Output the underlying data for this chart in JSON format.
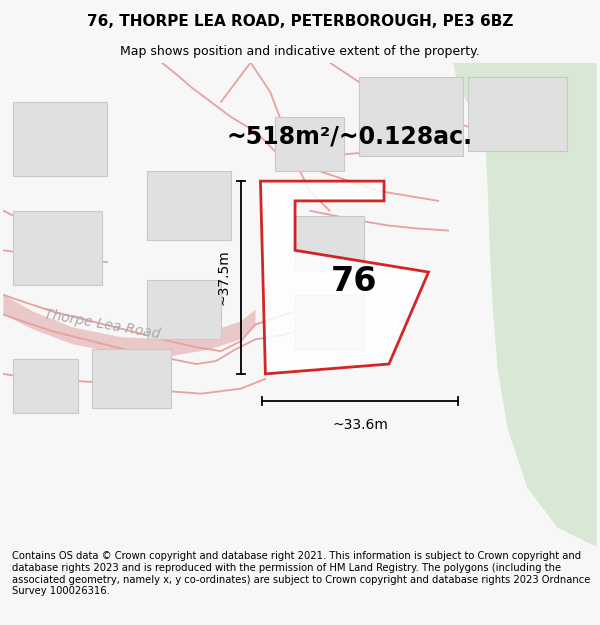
{
  "title": "76, THORPE LEA ROAD, PETERBOROUGH, PE3 6BZ",
  "subtitle": "Map shows position and indicative extent of the property.",
  "area_label": "~518m²/~0.128ac.",
  "number_label": "76",
  "dim_vertical": "~37.5m",
  "dim_horizontal": "~33.6m",
  "road_label": "Thorpe Lea Road",
  "footer": "Contains OS data © Crown copyright and database right 2021. This information is subject to Crown copyright and database rights 2023 and is reproduced with the permission of HM Land Registry. The polygons (including the associated geometry, namely x, y co-ordinates) are subject to Crown copyright and database rights 2023 Ordnance Survey 100026316.",
  "bg_color": "#f7f7f7",
  "map_bg": "#f2f2f2",
  "green_color": "#d8e8d5",
  "building_color": "#e0e0e0",
  "building_edge": "#c8c8c8",
  "road_fill": "#eac8c8",
  "road_line": "#e8a0a0",
  "plot_color": "#cc0000",
  "dim_color": "#000000",
  "road_label_color": "#aaaaaa",
  "title_fontsize": 11,
  "subtitle_fontsize": 9,
  "area_fontsize": 17,
  "number_fontsize": 24,
  "dim_fontsize": 10,
  "road_label_fontsize": 10,
  "footer_fontsize": 7.2
}
